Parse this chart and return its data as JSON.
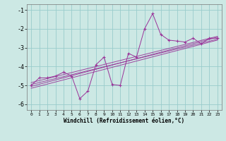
{
  "xlabel": "Windchill (Refroidissement éolien,°C)",
  "ylabel": "",
  "bg_color": "#cce8e4",
  "line_color": "#993399",
  "grid_color": "#99cccc",
  "x_values": [
    0,
    1,
    2,
    3,
    4,
    5,
    6,
    7,
    8,
    9,
    10,
    11,
    12,
    13,
    14,
    15,
    16,
    17,
    18,
    19,
    20,
    21,
    22,
    23
  ],
  "y_values": [
    -5.0,
    -4.6,
    -4.6,
    -4.5,
    -4.3,
    -4.5,
    -5.7,
    -5.3,
    -3.9,
    -3.5,
    -4.95,
    -5.0,
    -3.3,
    -3.5,
    -2.0,
    -1.2,
    -2.3,
    -2.6,
    -2.65,
    -2.7,
    -2.5,
    -2.8,
    -2.5,
    -2.5
  ],
  "ylim": [
    -6.3,
    -0.7
  ],
  "xlim": [
    -0.5,
    23.5
  ],
  "yticks": [
    -1,
    -2,
    -3,
    -4,
    -5,
    -6
  ],
  "xticks": [
    0,
    1,
    2,
    3,
    4,
    5,
    6,
    7,
    8,
    9,
    10,
    11,
    12,
    13,
    14,
    15,
    16,
    17,
    18,
    19,
    20,
    21,
    22,
    23
  ],
  "reg_lines": [
    {
      "x0": 0,
      "y0": -4.95,
      "x1": 23,
      "y1": -2.55
    },
    {
      "x0": 0,
      "y0": -5.05,
      "x1": 23,
      "y1": -2.45
    },
    {
      "x0": 0,
      "y0": -5.15,
      "x1": 23,
      "y1": -2.6
    },
    {
      "x0": 0,
      "y0": -4.85,
      "x1": 23,
      "y1": -2.4
    }
  ]
}
